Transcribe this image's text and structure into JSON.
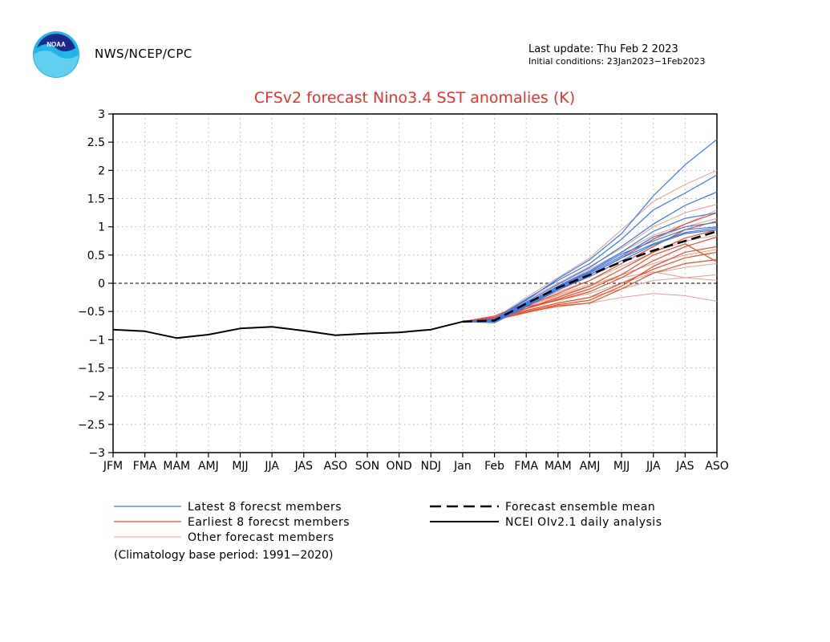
{
  "header": {
    "agency": "NWS/NCEP/CPC",
    "last_update": "Last update: Thu Feb 2 2023",
    "initial_conditions": "Initial conditions: 23Jan2023−1Feb2023",
    "logo_text": "NOAA"
  },
  "colors": {
    "title": "#e8322a",
    "latest": "#3a78e6",
    "earliest": "#ef4a25",
    "other": "#e0a090",
    "mean": "#000000",
    "analysis": "#000000",
    "grid": "#b0b0b0"
  },
  "chart_data": {
    "type": "line",
    "title": "CFSv2 forecast Nino3.4 SST anomalies (K)",
    "xlabel": "",
    "ylabel": "",
    "categories": [
      "JFM",
      "FMA",
      "MAM",
      "AMJ",
      "MJJ",
      "JJA",
      "JAS",
      "ASO",
      "SON",
      "OND",
      "NDJ",
      "Jan",
      "Feb",
      "FMA",
      "MAM",
      "AMJ",
      "MJJ",
      "JJA",
      "JAS",
      "ASO"
    ],
    "ylim": [
      -3,
      3
    ],
    "yticks": [
      "3",
      "2.5",
      "2",
      "1.5",
      "1",
      "0.5",
      "0",
      "−0.5",
      "−1",
      "−1.5",
      "−2",
      "−2.5",
      "−3"
    ],
    "grid": true,
    "zero_line": true,
    "analysis": [
      -0.82,
      -0.85,
      -0.97,
      -0.91,
      -0.8,
      -0.77,
      -0.84,
      -0.92,
      -0.89,
      -0.87,
      -0.82,
      -0.68
    ],
    "forecast_x_start": 11,
    "ensemble_mean": [
      -0.68,
      -0.66,
      -0.36,
      -0.08,
      0.15,
      0.38,
      0.58,
      0.75,
      0.92
    ],
    "latest_members": [
      [
        -0.68,
        -0.64,
        -0.3,
        0.08,
        0.42,
        0.88,
        1.55,
        2.1,
        2.55
      ],
      [
        -0.68,
        -0.63,
        -0.28,
        0.05,
        0.35,
        0.78,
        1.3,
        1.6,
        1.92
      ],
      [
        -0.68,
        -0.66,
        -0.33,
        -0.02,
        0.28,
        0.65,
        1.05,
        1.38,
        1.62
      ],
      [
        -0.68,
        -0.65,
        -0.36,
        -0.05,
        0.22,
        0.55,
        0.92,
        1.15,
        1.25
      ],
      [
        -0.68,
        -0.67,
        -0.38,
        -0.08,
        0.18,
        0.48,
        0.82,
        1.0,
        1.08
      ],
      [
        -0.68,
        -0.66,
        -0.35,
        -0.06,
        0.2,
        0.52,
        0.75,
        0.95,
        1.0
      ],
      [
        -0.68,
        -0.7,
        -0.42,
        -0.12,
        0.12,
        0.4,
        0.68,
        0.88,
        0.95
      ],
      [
        -0.68,
        -0.68,
        -0.4,
        -0.1,
        0.15,
        0.45,
        0.7,
        0.9,
        0.98
      ]
    ],
    "earliest_members": [
      [
        -0.68,
        -0.58,
        -0.35,
        -0.12,
        0.15,
        0.45,
        0.78,
        1.05,
        1.25
      ],
      [
        -0.68,
        -0.62,
        -0.4,
        -0.18,
        0.05,
        0.35,
        0.65,
        0.95,
        1.1
      ],
      [
        -0.68,
        -0.64,
        -0.45,
        -0.25,
        -0.05,
        0.25,
        0.55,
        0.8,
        0.95
      ],
      [
        -0.68,
        -0.6,
        -0.42,
        -0.3,
        -0.15,
        0.1,
        0.4,
        0.65,
        0.82
      ],
      [
        -0.68,
        -0.66,
        -0.5,
        -0.38,
        -0.3,
        -0.05,
        0.3,
        0.55,
        0.65
      ],
      [
        -0.68,
        -0.63,
        -0.48,
        -0.35,
        -0.25,
        0.0,
        0.25,
        0.45,
        0.55
      ],
      [
        -0.68,
        -0.65,
        -0.52,
        -0.4,
        -0.35,
        -0.1,
        0.18,
        0.35,
        0.42
      ],
      [
        -0.68,
        -0.61,
        -0.45,
        -0.28,
        -0.1,
        0.15,
        0.5,
        0.7,
        0.38
      ]
    ],
    "other_members": [
      [
        -0.68,
        -0.62,
        -0.25,
        0.1,
        0.45,
        0.95,
        1.45,
        1.75,
        2.0
      ],
      [
        -0.68,
        -0.64,
        -0.3,
        0.0,
        0.3,
        0.62,
        1.0,
        1.25,
        1.4
      ],
      [
        -0.68,
        -0.66,
        -0.35,
        -0.1,
        0.15,
        0.45,
        0.78,
        1.0,
        1.15
      ],
      [
        -0.68,
        -0.63,
        -0.38,
        -0.15,
        0.05,
        0.3,
        0.55,
        0.75,
        0.85
      ],
      [
        -0.68,
        -0.65,
        -0.42,
        -0.22,
        -0.05,
        0.15,
        0.35,
        0.5,
        0.6
      ],
      [
        -0.68,
        -0.67,
        -0.45,
        -0.3,
        -0.18,
        0.0,
        0.18,
        0.28,
        0.35
      ],
      [
        -0.68,
        -0.66,
        -0.48,
        -0.35,
        -0.25,
        -0.1,
        0.05,
        0.1,
        0.15
      ],
      [
        -0.68,
        -0.64,
        -0.5,
        -0.42,
        -0.35,
        -0.25,
        -0.18,
        -0.22,
        -0.32
      ],
      [
        -0.68,
        -0.62,
        -0.4,
        -0.2,
        -0.02,
        0.1,
        0.2,
        0.1,
        0.05
      ],
      [
        -0.68,
        -0.63,
        -0.36,
        -0.05,
        0.25,
        0.55,
        0.85,
        1.05,
        1.3
      ]
    ]
  },
  "legend": {
    "latest": "Latest 8 forecst members",
    "earliest": "Earliest 8 forecst members",
    "other": "Other forecast members",
    "mean": "Forecast ensemble mean",
    "analysis": "NCEI OIv2.1 daily analysis"
  },
  "footnote": "(Climatology base period: 1991−2020)"
}
